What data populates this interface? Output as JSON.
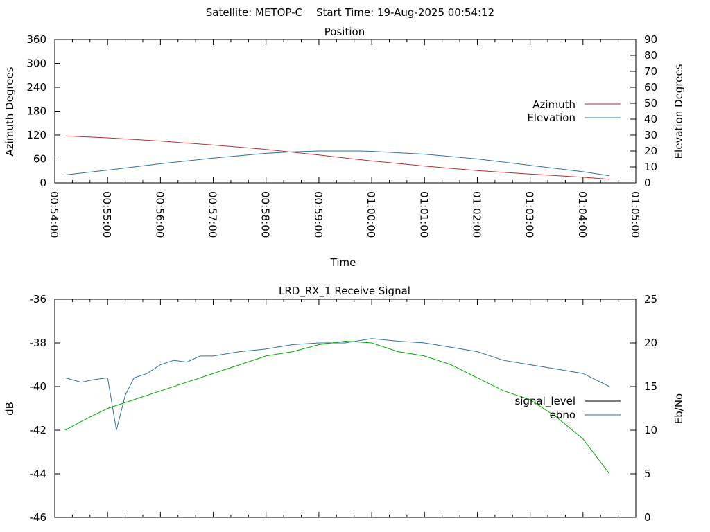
{
  "header": {
    "satellite": "Satellite: METOP-C",
    "start_time": "Start Time: 19-Aug-2025 00:54:12"
  },
  "chart_data": [
    {
      "type": "line",
      "title": "Position",
      "xlabel": "Time",
      "ylabel": "Azimuth Degrees",
      "y2label": "Elevation Degrees",
      "xlim": [
        "00:54:00",
        "01:05:00"
      ],
      "ylim": [
        0,
        360
      ],
      "y2lim": [
        0,
        90
      ],
      "yticks": [
        "0",
        "60",
        "120",
        "180",
        "240",
        "300",
        "360"
      ],
      "y2ticks": [
        "0",
        "10",
        "20",
        "30",
        "40",
        "50",
        "60",
        "70",
        "80",
        "90"
      ],
      "xticks": [
        "00:54:00",
        "00:55:00",
        "00:56:00",
        "00:57:00",
        "00:58:00",
        "00:59:00",
        "01:00:00",
        "01:01:00",
        "01:02:00",
        "01:03:00",
        "01:04:00",
        "01:05:00"
      ],
      "legend_position": "right",
      "series": [
        {
          "name": "Azimuth",
          "axis": "y",
          "color": "#b03030",
          "x": [
            "00:54:12",
            "00:55:00",
            "00:56:00",
            "00:57:00",
            "00:58:00",
            "00:58:30",
            "00:59:00",
            "01:00:00",
            "01:01:00",
            "01:02:00",
            "01:03:00",
            "01:04:00",
            "01:04:30"
          ],
          "values": [
            118,
            113,
            105,
            95,
            84,
            77,
            70,
            55,
            42,
            31,
            22,
            14,
            9
          ]
        },
        {
          "name": "Elevation",
          "axis": "y2",
          "color": "#3070a0",
          "x": [
            "00:54:12",
            "00:55:00",
            "00:56:00",
            "00:57:00",
            "00:58:00",
            "00:58:30",
            "00:59:00",
            "00:59:45",
            "01:00:00",
            "01:01:00",
            "01:02:00",
            "01:03:00",
            "01:04:00",
            "01:04:30"
          ],
          "values": [
            5,
            8,
            12,
            15.5,
            18.5,
            19.5,
            20,
            20,
            19.8,
            18,
            15,
            11,
            7,
            4.5
          ]
        }
      ]
    },
    {
      "type": "line",
      "title": "LRD_RX_1 Receive Signal",
      "xlabel": "",
      "ylabel": "dB",
      "y2label": "Eb/No",
      "xlim": [
        "00:54:00",
        "01:05:00"
      ],
      "ylim": [
        -46,
        -36
      ],
      "y2lim": [
        0,
        25
      ],
      "yticks": [
        "-46",
        "-44",
        "-42",
        "-40",
        "-38",
        "-36"
      ],
      "y2ticks": [
        "0",
        "5",
        "10",
        "15",
        "20",
        "25"
      ],
      "legend_position": "right",
      "series": [
        {
          "name": "signal_level",
          "axis": "y",
          "color": "#000000",
          "x": [],
          "values": []
        },
        {
          "name": "ebno",
          "axis": "y2",
          "color": "#3070a0",
          "x": [
            "00:54:12",
            "00:54:30",
            "00:54:45",
            "00:55:00",
            "00:55:10",
            "00:55:20",
            "00:55:30",
            "00:55:45",
            "00:56:00",
            "00:56:15",
            "00:56:30",
            "00:56:45",
            "00:57:00",
            "00:57:30",
            "00:58:00",
            "00:58:30",
            "00:59:00",
            "00:59:30",
            "01:00:00",
            "01:00:30",
            "01:01:00",
            "01:01:30",
            "01:02:00",
            "01:02:30",
            "01:03:00",
            "01:03:30",
            "01:04:00",
            "01:04:30"
          ],
          "values": [
            16,
            15.5,
            15.8,
            16,
            10,
            14,
            16,
            16.5,
            17.5,
            18,
            17.8,
            18.5,
            18.5,
            19,
            19.3,
            19.8,
            20,
            20,
            20.5,
            20.2,
            20,
            19.5,
            19,
            18,
            17.5,
            17,
            16.5,
            15
          ]
        },
        {
          "name": "",
          "axis": "y2",
          "color": "#00aa00",
          "x": [
            "00:54:12",
            "00:54:30",
            "00:55:00",
            "00:55:30",
            "00:56:00",
            "00:56:30",
            "00:57:00",
            "00:57:30",
            "00:58:00",
            "00:58:30",
            "00:59:00",
            "00:59:30",
            "01:00:00",
            "01:00:30",
            "01:01:00",
            "01:01:30",
            "01:02:00",
            "01:02:30",
            "01:03:00",
            "01:03:30",
            "01:04:00",
            "01:04:30"
          ],
          "values": [
            10,
            11,
            12.5,
            13.5,
            14.5,
            15.5,
            16.5,
            17.5,
            18.5,
            19,
            19.8,
            20.2,
            20,
            19,
            18.5,
            17.5,
            16,
            14.5,
            13.5,
            11.5,
            9,
            5
          ]
        }
      ]
    }
  ]
}
